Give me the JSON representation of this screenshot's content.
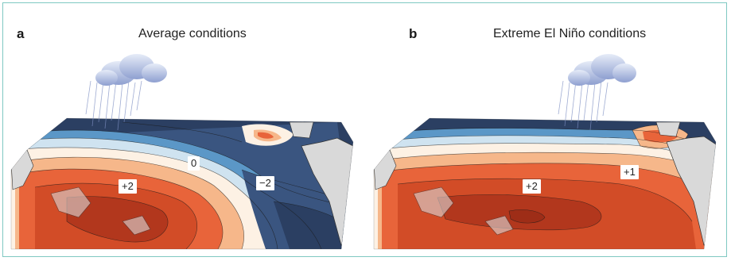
{
  "panels": [
    {
      "letter": "a",
      "title": "Average conditions",
      "labels": {
        "warm": "+2",
        "neutral": "0",
        "cold": "−2"
      }
    },
    {
      "letter": "b",
      "title": "Extreme El Niño conditions",
      "labels": {
        "warm": "+2",
        "east": "+1"
      }
    }
  ],
  "colors": {
    "frame": "#7fc8c2",
    "warm_core": "#c23b1e",
    "warm": "#e8643a",
    "warm_light": "#f6b78a",
    "neutral": "#fdf1e4",
    "cool_light": "#cfe3f0",
    "cool": "#5b97c7",
    "cold": "#2b3f62",
    "land": "#d9d9d9"
  }
}
